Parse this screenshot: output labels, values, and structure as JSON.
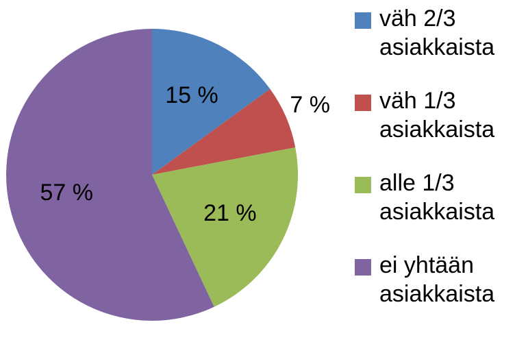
{
  "chart_data": {
    "type": "pie",
    "categories": [
      "väh 2/3 asiakkaista",
      "väh 1/3 asiakkaista",
      "alle 1/3 asiakkaista",
      "ei yhtään asiakkaista"
    ],
    "values": [
      15,
      7,
      21,
      57
    ],
    "value_labels": [
      "15 %",
      "7 %",
      "21 %",
      "57 %"
    ],
    "colors": [
      "#4f81bd",
      "#c0504d",
      "#9bbb59",
      "#8064a2"
    ],
    "legend": "right"
  }
}
